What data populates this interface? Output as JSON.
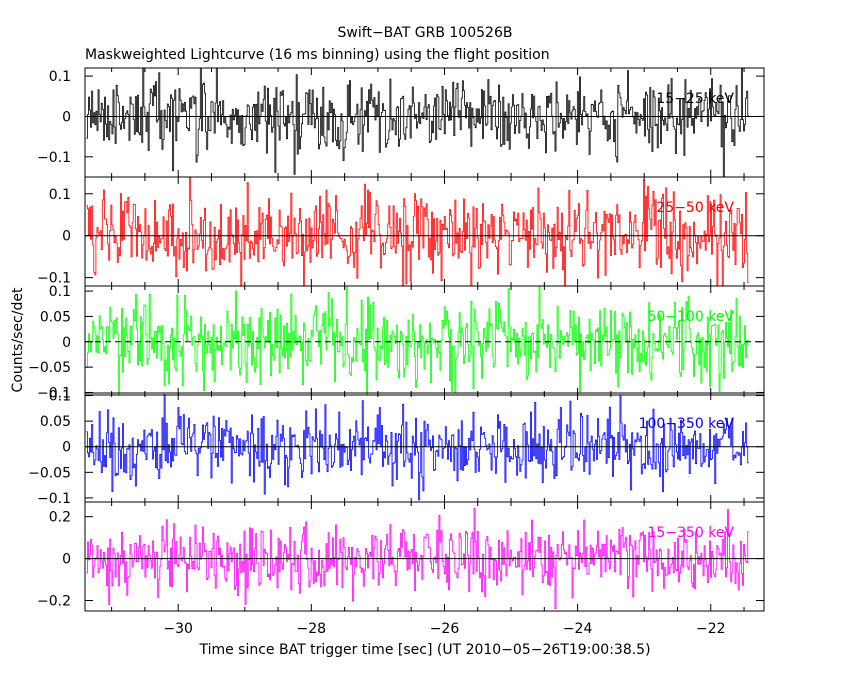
{
  "chart_data": {
    "type": "line",
    "title": "Swift−BAT GRB 100526B",
    "subtitle": "Maskweighted Lightcurve (16 ms binning) using the flight position",
    "xlabel": "Time since BAT trigger time [sec] (UT 2010−05−26T19:00:38.5)",
    "ylabel": "Counts/sec/det",
    "xlim": [
      -31.4,
      -21.2
    ],
    "xticks": [
      -30,
      -28,
      -26,
      -24,
      -22
    ],
    "xtick_labels": [
      "−30",
      "−28",
      "−26",
      "−24",
      "−22"
    ],
    "x_start": -31.38,
    "x_end": -21.42,
    "bin_width": 0.016,
    "grid": false,
    "panels": [
      {
        "band": "15−25 keV",
        "color": "#000000",
        "ylim": [
          -0.15,
          0.12
        ],
        "yticks": [
          0.1,
          0,
          -0.1
        ],
        "ytick_labels": [
          "0.1",
          "0",
          "−0.1"
        ],
        "noise_sigma": 0.045,
        "zero_line_style": "solid"
      },
      {
        "band": "25−50 keV",
        "color": "#ff0000",
        "ylim": [
          -0.12,
          0.14
        ],
        "yticks": [
          0.1,
          0,
          -0.1
        ],
        "ytick_labels": [
          "0.1",
          "0",
          "−0.1"
        ],
        "noise_sigma": 0.05,
        "zero_line_style": "solid"
      },
      {
        "band": "50−100 keV",
        "color": "#00ff00",
        "ylim": [
          -0.105,
          0.11
        ],
        "yticks": [
          0.1,
          0.05,
          0,
          -0.05,
          -0.1
        ],
        "ytick_labels": [
          "0.1",
          "0.05",
          "0",
          "−0.05",
          "−0.1"
        ],
        "noise_sigma": 0.04,
        "zero_line_style": "dashed"
      },
      {
        "band": "100−350 keV",
        "color": "#0000ff",
        "ylim": [
          -0.108,
          0.105
        ],
        "yticks": [
          0.1,
          0.05,
          0,
          -0.05,
          -0.1
        ],
        "ytick_labels": [
          "0.1",
          "0.05",
          "0",
          "−0.05",
          "−0.1"
        ],
        "noise_sigma": 0.035,
        "zero_line_style": "solid"
      },
      {
        "band": "15−350 keV",
        "color": "#ff00ff",
        "ylim": [
          -0.25,
          0.27
        ],
        "yticks": [
          0.2,
          0,
          -0.2
        ],
        "ytick_labels": [
          "0.2",
          "0",
          "−0.2"
        ],
        "noise_sigma": 0.085,
        "zero_line_style": "solid"
      }
    ]
  }
}
